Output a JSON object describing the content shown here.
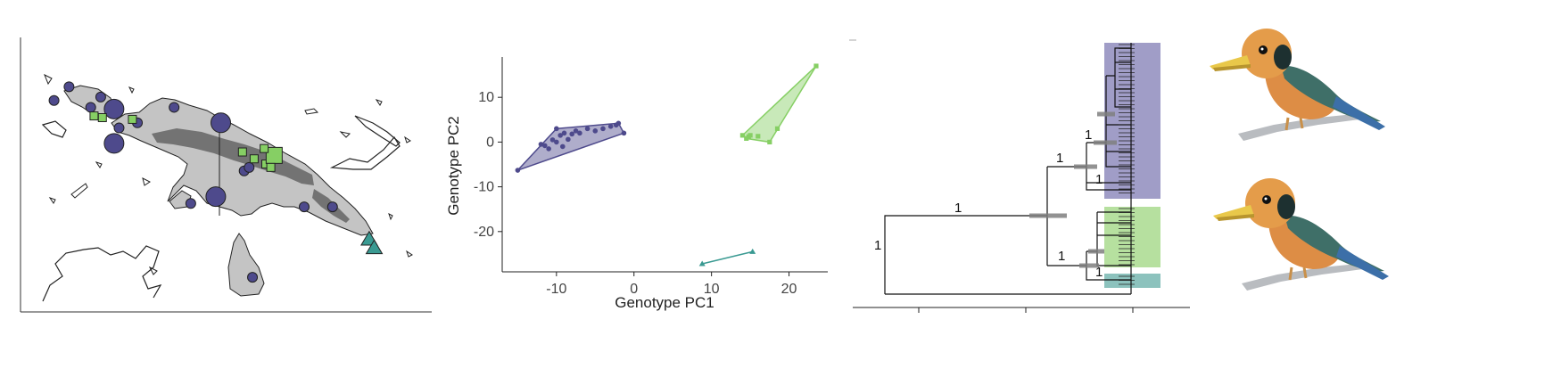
{
  "colors": {
    "group_a": "#4e4a8c",
    "group_b": "#86cf64",
    "group_c": "#3a9a92",
    "land": "#c4c4c4",
    "highland": "#727272"
  },
  "map_panel": {
    "circles": [
      {
        "lon": 131.5,
        "lat": -0.4,
        "size": "small"
      },
      {
        "lon": 130.6,
        "lat": -1.2,
        "size": "small"
      },
      {
        "lon": 133.4,
        "lat": -1.0,
        "size": "small"
      },
      {
        "lon": 132.8,
        "lat": -1.6,
        "size": "small"
      },
      {
        "lon": 134.2,
        "lat": -1.7,
        "size": "large"
      },
      {
        "lon": 135.6,
        "lat": -2.5,
        "size": "small"
      },
      {
        "lon": 134.5,
        "lat": -2.8,
        "size": "small"
      },
      {
        "lon": 134.2,
        "lat": -3.7,
        "size": "large"
      },
      {
        "lon": 137.8,
        "lat": -1.6,
        "size": "small"
      },
      {
        "lon": 140.6,
        "lat": -2.5,
        "size": "large"
      },
      {
        "lon": 142.0,
        "lat": -5.3,
        "size": "small"
      },
      {
        "lon": 142.3,
        "lat": -5.1,
        "size": "small"
      },
      {
        "lon": 140.3,
        "lat": -6.8,
        "size": "large"
      },
      {
        "lon": 138.8,
        "lat": -7.2,
        "size": "small"
      },
      {
        "lon": 143.5,
        "lat": -4.9,
        "size": "small"
      },
      {
        "lon": 145.6,
        "lat": -7.4,
        "size": "small"
      },
      {
        "lon": 147.3,
        "lat": -7.4,
        "size": "small"
      },
      {
        "lon": 142.5,
        "lat": -11.5,
        "size": "small"
      }
    ],
    "squares": [
      {
        "lon": 133.0,
        "lat": -2.1,
        "size": "small"
      },
      {
        "lon": 133.5,
        "lat": -2.2,
        "size": "small"
      },
      {
        "lon": 135.3,
        "lat": -2.3,
        "size": "small"
      },
      {
        "lon": 141.9,
        "lat": -4.2,
        "size": "small"
      },
      {
        "lon": 142.6,
        "lat": -4.6,
        "size": "small"
      },
      {
        "lon": 143.3,
        "lat": -4.9,
        "size": "small"
      },
      {
        "lon": 143.8,
        "lat": -4.4,
        "size": "large"
      },
      {
        "lon": 143.6,
        "lat": -5.1,
        "size": "small"
      },
      {
        "lon": 143.2,
        "lat": -4.0,
        "size": "small"
      }
    ],
    "triangles": [
      {
        "lon": 149.5,
        "lat": -9.3
      },
      {
        "lon": 149.8,
        "lat": -9.8
      }
    ]
  },
  "pca_panel": {
    "chart_data": {
      "type": "scatter",
      "xlabel": "Genotype PC1",
      "ylabel": "Genotype PC2",
      "xlim": [
        -17,
        25
      ],
      "ylim": [
        -29,
        19
      ],
      "xticks": [
        -10,
        0,
        10,
        20
      ],
      "yticks": [
        10,
        0,
        -10,
        -20
      ],
      "series": [
        {
          "marker": "circle",
          "color": "#4e4a8c",
          "points": [
            [
              -15,
              -6.3
            ],
            [
              -12,
              -0.5
            ],
            [
              -11.5,
              -0.8
            ],
            [
              -11,
              -1.5
            ],
            [
              -10.5,
              0.5
            ],
            [
              -10,
              3
            ],
            [
              -10,
              0
            ],
            [
              -9.5,
              1.5
            ],
            [
              -9.2,
              -1
            ],
            [
              -9,
              2
            ],
            [
              -8.5,
              0.6
            ],
            [
              -8,
              1.8
            ],
            [
              -7.5,
              2.5
            ],
            [
              -7,
              2
            ],
            [
              -6,
              3
            ],
            [
              -5,
              2.5
            ],
            [
              -4,
              3
            ],
            [
              -3,
              3.5
            ],
            [
              -2.3,
              3.8
            ],
            [
              -2,
              4.2
            ],
            [
              -1.3,
              2
            ]
          ],
          "hull": [
            [
              -15,
              -6.3
            ],
            [
              -10,
              3
            ],
            [
              -2,
              4.2
            ],
            [
              -1.3,
              2
            ]
          ]
        },
        {
          "marker": "square",
          "color": "#86cf64",
          "points": [
            [
              14,
              1.5
            ],
            [
              14.5,
              0.8
            ],
            [
              14.8,
              1.2
            ],
            [
              15,
              1.5
            ],
            [
              16,
              1.3
            ],
            [
              17.5,
              0
            ],
            [
              18.5,
              3
            ],
            [
              23.5,
              17
            ]
          ],
          "hull": [
            [
              14,
              1.5
            ],
            [
              23.5,
              17
            ],
            [
              17.5,
              0
            ],
            [
              14.5,
              0.8
            ]
          ]
        },
        {
          "marker": "triangle",
          "color": "#3a9a92",
          "points": [
            [
              8.8,
              -27.2
            ],
            [
              15.3,
              -24.5
            ]
          ],
          "hull": [
            [
              8.8,
              -27.2
            ],
            [
              15.3,
              -24.5
            ]
          ]
        }
      ]
    }
  },
  "tree_panel": {
    "node_labels": {
      "root": "1",
      "main": "1",
      "upper": "1",
      "inner": "1",
      "inner_lower": "1",
      "lower": "1",
      "lower_sub": "1"
    }
  }
}
